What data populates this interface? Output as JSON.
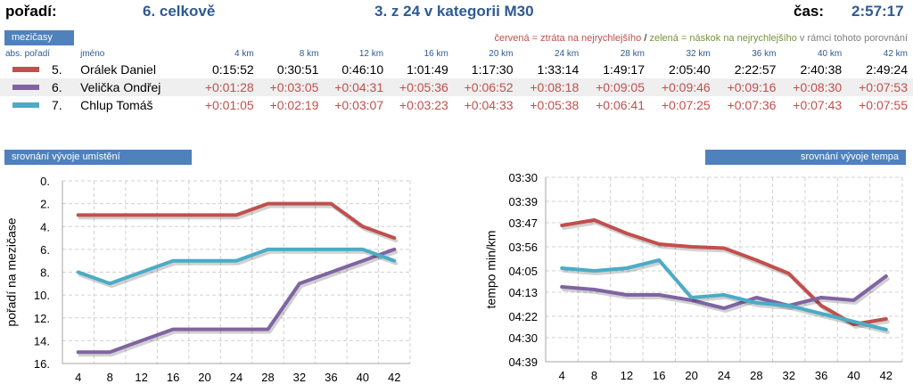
{
  "header": {
    "rank_label": "pořadí:",
    "overall": "6.  celkově",
    "category": "3.  z  24  v kategorii M30",
    "time_label": "čas:",
    "time_value": "2:57:17"
  },
  "splits": {
    "tab_label": "mezičasy",
    "legend": {
      "red": "červená = ztráta na nejrychlejšího",
      "sep": " / ",
      "green": "zelená = náskok na nejrychlejšího",
      "rest": " v rámci tohoto porovnání"
    },
    "col_rank": "abs. pořadí",
    "col_name": "jméno",
    "km_headers": [
      "4 km",
      "8 km",
      "12 km",
      "16 km",
      "20 km",
      "24 km",
      "28 km",
      "32 km",
      "36 km",
      "40 km",
      "42 km"
    ],
    "rows": [
      {
        "rank": "5.",
        "name": "Orálek Daniel",
        "color": "#c0504d",
        "times": [
          "0:15:52",
          "0:30:51",
          "0:46:10",
          "1:01:49",
          "1:17:30",
          "1:33:14",
          "1:49:17",
          "2:05:40",
          "2:22:57",
          "2:40:38",
          "2:49:24"
        ]
      },
      {
        "rank": "6.",
        "name": "Velička Ondřej",
        "color": "#8064a2",
        "times": [
          "+0:01:28",
          "+0:03:05",
          "+0:04:31",
          "+0:05:36",
          "+0:06:52",
          "+0:08:18",
          "+0:09:05",
          "+0:09:46",
          "+0:09:16",
          "+0:08:30",
          "+0:07:53"
        ]
      },
      {
        "rank": "7.",
        "name": "Chlup Tomáš",
        "color": "#4bacc6",
        "times": [
          "+0:01:05",
          "+0:02:19",
          "+0:03:07",
          "+0:03:23",
          "+0:04:33",
          "+0:05:38",
          "+0:06:41",
          "+0:07:25",
          "+0:07:36",
          "+0:07:43",
          "+0:07:55"
        ]
      }
    ]
  },
  "chart_labels": {
    "placement_tab": "srovnání vývoje umístění",
    "pace_tab": "srovnání vývoje tempa"
  },
  "chart_data": [
    {
      "type": "line",
      "title": "srovnání vývoje umístění",
      "xlabel": "",
      "ylabel": "pořadí na mezičase",
      "x": [
        4,
        8,
        12,
        16,
        20,
        24,
        28,
        32,
        36,
        40,
        42
      ],
      "ylim": [
        0,
        16
      ],
      "y_inverted": true,
      "y_ticks": [
        "0.",
        "2.",
        "4.",
        "6.",
        "8.",
        "10.",
        "12.",
        "14.",
        "16."
      ],
      "grid": true,
      "series": [
        {
          "name": "Orálek Daniel",
          "color": "#c0504d",
          "values": [
            3,
            3,
            3,
            3,
            3,
            3,
            2,
            2,
            2,
            4,
            5
          ]
        },
        {
          "name": "Velička Ondřej",
          "color": "#8064a2",
          "values": [
            15,
            15,
            14,
            13,
            13,
            13,
            13,
            9,
            8,
            7,
            6
          ]
        },
        {
          "name": "Chlup Tomáš",
          "color": "#4bacc6",
          "values": [
            8,
            9,
            8,
            7,
            7,
            7,
            6,
            6,
            6,
            6,
            7
          ]
        }
      ]
    },
    {
      "type": "line",
      "title": "srovnání vývoje tempa",
      "xlabel": "",
      "ylabel": "tempo min/km",
      "x": [
        4,
        8,
        12,
        16,
        20,
        24,
        28,
        32,
        36,
        40,
        42
      ],
      "ylim": [
        210,
        279
      ],
      "y_inverted": true,
      "y_tick_values": [
        210,
        219,
        227,
        236,
        245,
        253,
        262,
        270,
        279
      ],
      "y_ticks": [
        "03:30",
        "03:39",
        "03:47",
        "03:56",
        "04:05",
        "04:13",
        "04:22",
        "04:30",
        "04:39"
      ],
      "grid": true,
      "series": [
        {
          "name": "Orálek Daniel",
          "color": "#c0504d",
          "values": [
            228,
            226,
            231,
            235,
            236,
            236.5,
            241,
            246,
            258,
            265,
            263
          ]
        },
        {
          "name": "Velička Ondřej",
          "color": "#8064a2",
          "values": [
            251,
            252,
            254,
            254,
            256,
            259,
            255,
            258,
            255,
            256,
            247
          ]
        },
        {
          "name": "Chlup Tomáš",
          "color": "#4bacc6",
          "values": [
            244,
            245,
            244,
            241,
            255,
            254,
            257,
            258,
            261,
            264,
            267
          ]
        }
      ]
    }
  ]
}
